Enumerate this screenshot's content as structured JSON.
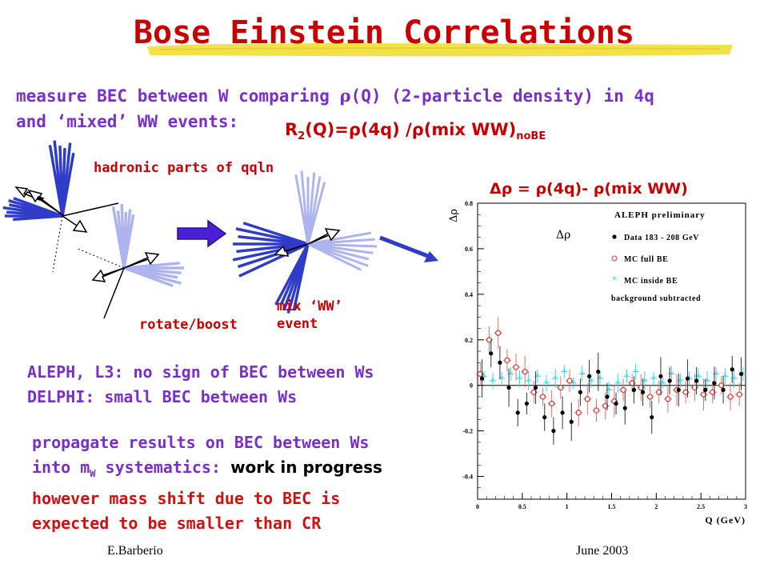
{
  "title": "Bose Einstein Correlations",
  "intro": {
    "line1_a": "measure BEC between W comparing ",
    "rho_symbol": "ρ",
    "line1_b": "(Q) (2-particle density) in 4q",
    "line2": "and ‘mixed’ WW events:"
  },
  "formula": {
    "r2_pre": "R",
    "r2_sub": "2",
    "r2_mid": "(Q)=ρ(4q) /ρ(mix WW)",
    "r2_sub2": "noBE"
  },
  "diagram": {
    "hadronic_label": "hadronic parts of qqln",
    "rotate_label": "rotate/boost",
    "mix_label_1": "mix ‘WW’",
    "mix_label_2": "event"
  },
  "delta_rho_label": "Δρ = ρ(4q)- ρ(mix WW)",
  "results": {
    "line1": "ALEPH, L3: no sign of BEC between Ws",
    "line2": "DELPHI: small BEC between Ws"
  },
  "propagate": {
    "line1": "propagate results on BEC between Ws",
    "line2_a": "into m",
    "line2_sub": "W",
    "line2_b": " systematics: ",
    "line2_c": "work in progress",
    "line3": "however mass shift due to BEC is",
    "line4": "expected to be smaller than CR"
  },
  "footer": {
    "author": "E.Barberio",
    "date": "June 2003"
  },
  "colors": {
    "title": "#c80000",
    "purple_text": "#7a2fc8",
    "red_text": "#d01010",
    "highlight": "#f2e24a",
    "jet_dark": "#2f3cc9",
    "jet_light": "#aeb4ee"
  },
  "chart_data": {
    "type": "scatter",
    "title": "ALEPH preliminary",
    "ylabel": "Δρ",
    "xlabel": "Q (GeV)",
    "xlim": [
      0,
      3
    ],
    "ylim": [
      -0.5,
      0.8
    ],
    "xticks": [
      "0",
      "0.5",
      "1",
      "1.5",
      "2",
      "2.5",
      "3"
    ],
    "yticks": [
      "-0.4",
      "-0.2",
      "0",
      "0.2",
      "0.4",
      "0.6",
      "0.8"
    ],
    "legend_symbol": "Δρ",
    "legend_entries": [
      "Data 183 - 208 GeV",
      "MC full BE",
      "MC inside BE",
      "background subtracted"
    ],
    "series": [
      {
        "name": "Data 183 - 208 GeV",
        "x": [
          0.05,
          0.15,
          0.25,
          0.35,
          0.45,
          0.55,
          0.65,
          0.75,
          0.85,
          0.95,
          1.05,
          1.15,
          1.25,
          1.35,
          1.45,
          1.55,
          1.65,
          1.75,
          1.85,
          1.95,
          2.05,
          2.15,
          2.25,
          2.35,
          2.45,
          2.55,
          2.65,
          2.75,
          2.85,
          2.95
        ],
        "y": [
          0.03,
          0.14,
          0.1,
          -0.01,
          -0.12,
          -0.08,
          -0.01,
          -0.14,
          -0.2,
          -0.12,
          -0.16,
          -0.03,
          0.04,
          0.06,
          -0.05,
          -0.08,
          -0.1,
          -0.02,
          -0.03,
          -0.14,
          0.04,
          0.02,
          -0.02,
          0.03,
          0.02,
          -0.02,
          0.01,
          -0.02,
          0.07,
          0.05
        ]
      },
      {
        "name": "MC full BE",
        "x": [
          0.05,
          0.15,
          0.25,
          0.35,
          0.45,
          0.55,
          0.65,
          0.75,
          0.85,
          0.95,
          1.05,
          1.15,
          1.25,
          1.35,
          1.45,
          1.55,
          1.65,
          1.75,
          1.85,
          1.95,
          2.05,
          2.15,
          2.25,
          2.35,
          2.45,
          2.55,
          2.65,
          2.75,
          2.85,
          2.95
        ],
        "y": [
          0.05,
          0.2,
          0.23,
          0.11,
          0.08,
          0.06,
          -0.03,
          -0.05,
          -0.08,
          -0.01,
          0.02,
          -0.12,
          -0.06,
          -0.11,
          -0.09,
          -0.07,
          -0.02,
          0.01,
          -0.01,
          -0.05,
          -0.03,
          -0.06,
          -0.02,
          -0.03,
          -0.01,
          -0.04,
          -0.03,
          0.0,
          -0.05,
          -0.04
        ]
      },
      {
        "name": "MC inside BE",
        "x": [
          0.05,
          0.15,
          0.25,
          0.35,
          0.45,
          0.55,
          0.65,
          0.75,
          0.85,
          0.95,
          1.05,
          1.15,
          1.25,
          1.35,
          1.45,
          1.55,
          1.65,
          1.75,
          1.85,
          1.95,
          2.05,
          2.15,
          2.25,
          2.35,
          2.45,
          2.55,
          2.65,
          2.75,
          2.85,
          2.95
        ],
        "y": [
          0.04,
          0.02,
          0.03,
          0.05,
          0.03,
          0.02,
          0.04,
          0.01,
          0.03,
          0.06,
          0.01,
          0.05,
          0.02,
          0.03,
          -0.02,
          0.01,
          0.04,
          0.06,
          0.02,
          0.03,
          0.01,
          0.05,
          0.02,
          0.03,
          0.04,
          0.02,
          0.05,
          0.04,
          0.03,
          0.05
        ]
      }
    ]
  }
}
